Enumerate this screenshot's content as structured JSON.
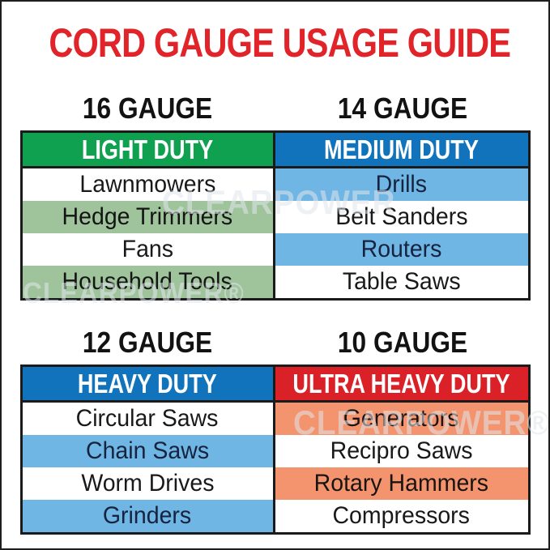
{
  "poster": {
    "title": "CORD GAUGE USAGE GUIDE",
    "title_color": "#E0242A"
  },
  "watermarks": [
    {
      "text": "CLEARPOWER"
    },
    {
      "text": "CLEARPOWER®"
    },
    {
      "text": "CLEARPOWER®"
    }
  ],
  "colors": {
    "green_header": "#0FA14F",
    "green_tint": "#9FC49C",
    "blue_header": "#1273BD",
    "blue_tint": "#6FB6E4",
    "red_header": "#DA2128",
    "salmon_tint": "#F4946F"
  },
  "sections": [
    {
      "tables": [
        {
          "gauge_label": "16 GAUGE",
          "duty_label": "LIGHT DUTY",
          "header_color": "#0FA14F",
          "tint_color": "#9FC49C",
          "rows": [
            "Lawnmowers",
            "Hedge Trimmers",
            "Fans",
            "Household Tools"
          ]
        },
        {
          "gauge_label": "14 GAUGE",
          "duty_label": "MEDIUM DUTY",
          "header_color": "#1273BD",
          "tint_color": "#6FB6E4",
          "rows": [
            "Drills",
            "Belt Sanders",
            "Routers",
            "Table Saws"
          ]
        }
      ]
    },
    {
      "tables": [
        {
          "gauge_label": "12 GAUGE",
          "duty_label": "HEAVY DUTY",
          "header_color": "#1273BD",
          "tint_color": "#6FB6E4",
          "rows": [
            "Circular Saws",
            "Chain Saws",
            "Worm Drives",
            "Grinders"
          ]
        },
        {
          "gauge_label": "10 GAUGE",
          "duty_label": "ULTRA HEAVY DUTY",
          "header_color": "#DA2128",
          "tint_color": "#F4946F",
          "rows": [
            "Generators",
            "Recipro Saws",
            "Rotary Hammers",
            "Compressors"
          ]
        }
      ]
    }
  ]
}
